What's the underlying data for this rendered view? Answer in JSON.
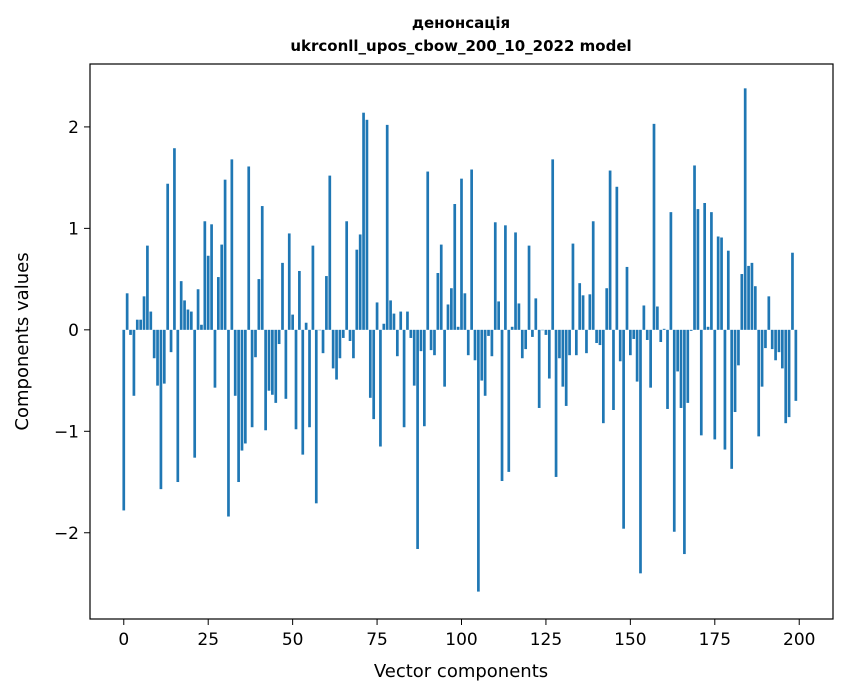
{
  "chart_data": {
    "type": "bar",
    "title": "денонсація",
    "subtitle": "ukrconll_upos_cbow_200_10_2022 model",
    "xlabel": "Vector components",
    "ylabel": "Components values",
    "xlim": [
      -10,
      210
    ],
    "ylim": [
      -2.85,
      2.62
    ],
    "xticks": [
      0,
      25,
      50,
      75,
      100,
      125,
      150,
      175,
      200
    ],
    "yticks": [
      -2,
      -1,
      0,
      1,
      2
    ],
    "xtick_labels": [
      "0",
      "25",
      "50",
      "75",
      "100",
      "125",
      "150",
      "175",
      "200"
    ],
    "ytick_labels": [
      "−2",
      "−1",
      "0",
      "1",
      "2"
    ],
    "grid": false,
    "bar_color": "#1f77b4",
    "x": [
      0,
      1,
      2,
      3,
      4,
      5,
      6,
      7,
      8,
      9,
      10,
      11,
      12,
      13,
      14,
      15,
      16,
      17,
      18,
      19,
      20,
      21,
      22,
      23,
      24,
      25,
      26,
      27,
      28,
      29,
      30,
      31,
      32,
      33,
      34,
      35,
      36,
      37,
      38,
      39,
      40,
      41,
      42,
      43,
      44,
      45,
      46,
      47,
      48,
      49,
      50,
      51,
      52,
      53,
      54,
      55,
      56,
      57,
      58,
      59,
      60,
      61,
      62,
      63,
      64,
      65,
      66,
      67,
      68,
      69,
      70,
      71,
      72,
      73,
      74,
      75,
      76,
      77,
      78,
      79,
      80,
      81,
      82,
      83,
      84,
      85,
      86,
      87,
      88,
      89,
      90,
      91,
      92,
      93,
      94,
      95,
      96,
      97,
      98,
      99,
      100,
      101,
      102,
      103,
      104,
      105,
      106,
      107,
      108,
      109,
      110,
      111,
      112,
      113,
      114,
      115,
      116,
      117,
      118,
      119,
      120,
      121,
      122,
      123,
      124,
      125,
      126,
      127,
      128,
      129,
      130,
      131,
      132,
      133,
      134,
      135,
      136,
      137,
      138,
      139,
      140,
      141,
      142,
      143,
      144,
      145,
      146,
      147,
      148,
      149,
      150,
      151,
      152,
      153,
      154,
      155,
      156,
      157,
      158,
      159,
      160,
      161,
      162,
      163,
      164,
      165,
      166,
      167,
      168,
      169,
      170,
      171,
      172,
      173,
      174,
      175,
      176,
      177,
      178,
      179,
      180,
      181,
      182,
      183,
      184,
      185,
      186,
      187,
      188,
      189,
      190,
      191,
      192,
      193,
      194,
      195,
      196,
      197,
      198,
      199
    ],
    "values": [
      -1.78,
      0.36,
      -0.05,
      -0.65,
      0.1,
      0.1,
      0.33,
      0.83,
      0.18,
      -0.28,
      -0.55,
      -1.57,
      -0.53,
      1.44,
      -0.22,
      1.79,
      -1.5,
      0.48,
      0.29,
      0.2,
      0.18,
      -1.26,
      0.4,
      0.05,
      1.07,
      0.73,
      1.04,
      -0.57,
      0.52,
      0.84,
      1.48,
      -1.84,
      1.68,
      -0.65,
      -1.5,
      -1.19,
      -1.12,
      1.61,
      -0.96,
      -0.27,
      0.5,
      1.22,
      -0.99,
      -0.6,
      -0.64,
      -0.72,
      -0.14,
      0.66,
      -0.68,
      0.95,
      0.15,
      -0.98,
      0.58,
      -1.23,
      0.07,
      -0.96,
      0.83,
      -1.71,
      0.0,
      -0.23,
      0.53,
      1.52,
      -0.38,
      -0.49,
      -0.28,
      -0.08,
      1.07,
      -0.11,
      -0.28,
      0.79,
      0.94,
      2.14,
      2.07,
      -0.67,
      -0.88,
      0.27,
      -1.15,
      0.06,
      2.02,
      0.29,
      0.16,
      -0.26,
      0.18,
      -0.96,
      0.18,
      -0.08,
      -0.55,
      -2.16,
      -0.21,
      -0.95,
      1.56,
      -0.2,
      -0.25,
      0.56,
      0.84,
      -0.56,
      0.25,
      0.41,
      1.24,
      0.03,
      1.49,
      0.36,
      -0.25,
      1.58,
      -0.3,
      -2.58,
      -0.5,
      -0.65,
      -0.06,
      -0.26,
      1.06,
      0.28,
      -1.49,
      1.03,
      -1.4,
      0.03,
      0.96,
      0.26,
      -0.28,
      -0.19,
      0.83,
      -0.07,
      0.31,
      -0.77,
      0.0,
      -0.05,
      -0.48,
      1.68,
      -1.45,
      -0.28,
      -0.56,
      -0.75,
      -0.25,
      0.85,
      -0.25,
      0.46,
      0.34,
      -0.23,
      0.35,
      1.07,
      -0.13,
      -0.15,
      -0.92,
      0.41,
      1.57,
      -0.79,
      1.41,
      -0.31,
      -1.96,
      0.62,
      -0.25,
      -0.09,
      -0.51,
      -2.4,
      0.24,
      -0.1,
      -0.57,
      2.03,
      0.23,
      -0.12,
      0.01,
      -0.78,
      1.16,
      -1.99,
      -0.41,
      -0.77,
      -2.21,
      -0.72,
      -0.01,
      1.62,
      1.19,
      -1.04,
      1.25,
      0.03,
      1.16,
      -1.08,
      0.92,
      0.91,
      -1.18,
      0.78,
      -1.37,
      -0.81,
      -0.35,
      0.55,
      2.38,
      0.63,
      0.66,
      0.43,
      -1.05,
      -0.56,
      -0.18,
      0.33,
      -0.19,
      -0.3,
      -0.22,
      -0.38,
      -0.92,
      -0.86,
      0.76,
      -0.7
    ]
  }
}
